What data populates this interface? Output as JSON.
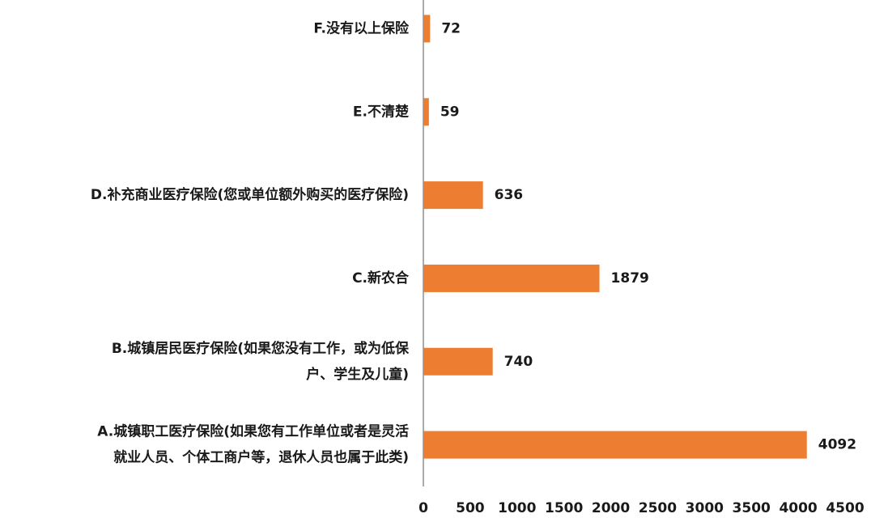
{
  "chart_data": {
    "type": "barh",
    "categories": [
      [
        "A.城镇职工医疗保险(如果您有工作单位或者是灵活",
        "就业人员、个体工商户等，退休人员也属于此类)"
      ],
      [
        "B.城镇居民医疗保险(如果您没有工作，或为低保",
        "户、学生及儿童)"
      ],
      [
        "C.新农合"
      ],
      [
        "D.补充商业医疗保险(您或单位额外购买的医疗保险)"
      ],
      [
        "E.不清楚"
      ],
      [
        "F.没有以上保险"
      ]
    ],
    "values": [
      4092,
      740,
      1879,
      636,
      59,
      72
    ],
    "color": "#ed7d31",
    "xlim": [
      0,
      4500
    ],
    "xticks": [
      0,
      500,
      1000,
      1500,
      2000,
      2500,
      3000,
      3500,
      4000,
      4500
    ],
    "grid": false
  }
}
